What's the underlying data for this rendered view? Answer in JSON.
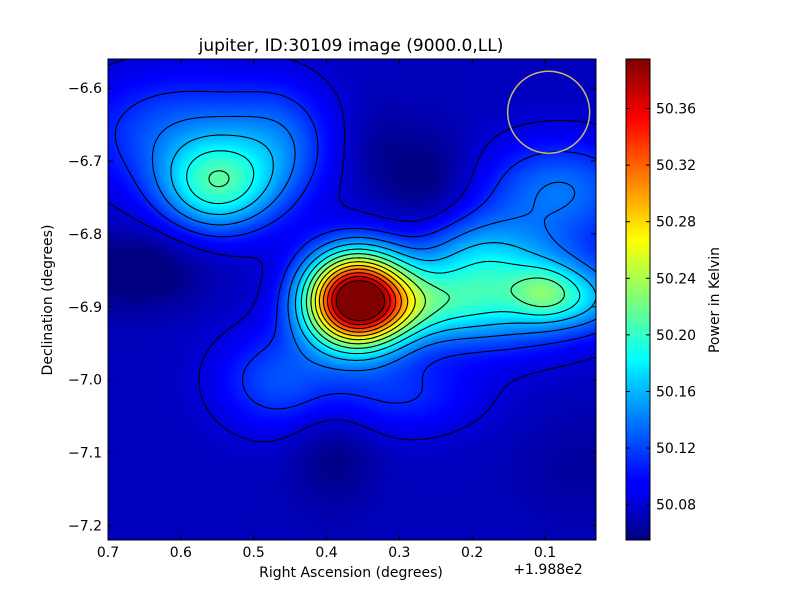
{
  "chart_data": {
    "type": "heatmap",
    "title": "jupiter, ID:30109 image (9000.0,LL)",
    "xlabel": "Right Ascension (degrees)",
    "ylabel": "Declination (degrees)",
    "x_offset_label": "+1.988e2",
    "xlim": [
      0.7,
      0.03
    ],
    "ylim": [
      -7.22,
      -6.56
    ],
    "x_ticks": [
      0.7,
      0.6,
      0.5,
      0.4,
      0.3,
      0.2,
      0.1
    ],
    "x_tick_labels": [
      "0.7",
      "0.6",
      "0.5",
      "0.4",
      "0.3",
      "0.2",
      "0.1"
    ],
    "y_ticks": [
      -6.6,
      -6.7,
      -6.8,
      -6.9,
      -7.0,
      -7.1,
      -7.2
    ],
    "y_tick_labels": [
      "−6.6",
      "−6.7",
      "−6.8",
      "−6.9",
      "−7.0",
      "−7.1",
      "−7.2"
    ],
    "colorbar": {
      "label": "Power in Kelvin",
      "range": [
        50.055,
        50.395
      ],
      "ticks": [
        50.08,
        50.12,
        50.16,
        50.2,
        50.24,
        50.28,
        50.32,
        50.36
      ],
      "tick_labels": [
        "50.08",
        "50.12",
        "50.16",
        "50.20",
        "50.24",
        "50.28",
        "50.32",
        "50.36"
      ]
    },
    "contours": "on",
    "beam_circle": {
      "ra": 0.095,
      "dec": -6.633,
      "color": "#c8b46e"
    },
    "features": [
      {
        "kind": "peak",
        "ra": 0.36,
        "dec": -6.89,
        "amplitude": 0.33,
        "value": 50.385
      },
      {
        "kind": "peak",
        "ra": 0.1,
        "dec": -6.882,
        "value": 50.215
      },
      {
        "kind": "peak",
        "ra": 0.55,
        "dec": -6.74,
        "value": 50.185
      },
      {
        "kind": "minimum",
        "ra": 0.66,
        "dec": -6.85,
        "value": 50.06
      },
      {
        "kind": "minimum",
        "ra": 0.26,
        "dec": -6.73,
        "value": 50.06
      },
      {
        "kind": "minimum",
        "ra": 0.39,
        "dec": -7.1,
        "value": 50.06
      }
    ]
  }
}
